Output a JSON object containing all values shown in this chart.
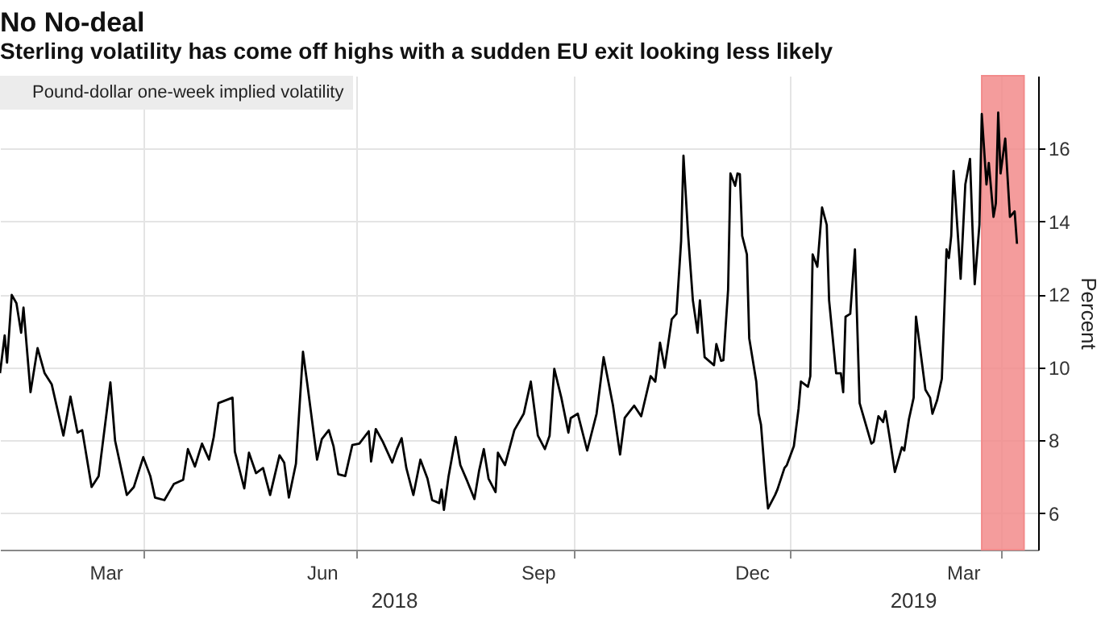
{
  "chart_data": {
    "type": "line",
    "title": "No No-deal",
    "subtitle": "Sterling volatility has come off highs with a sudden EU exit looking less likely",
    "ylabel": "Percent",
    "xlim": [
      "2018-01-30",
      "2019-04-17"
    ],
    "xticks": [
      {
        "value": "2018-04-01",
        "label": null
      },
      {
        "value": "2018-07-01",
        "label": null
      },
      {
        "value": "2018-10-01",
        "label": null
      },
      {
        "value": "2019-01-01",
        "label": null
      },
      {
        "value": "2019-04-01",
        "label": null
      },
      {
        "value": "2018-03-16",
        "label": "Mar"
      },
      {
        "value": "2018-06-16",
        "label": "Jun"
      },
      {
        "value": "2018-09-16",
        "label": "Sep"
      },
      {
        "value": "2018-12-16",
        "label": "Dec"
      },
      {
        "value": "2019-03-16",
        "label": "Mar"
      }
    ],
    "ylim": [
      5,
      18
    ],
    "yticks": [
      6,
      8,
      10,
      12,
      14,
      16
    ],
    "grid": true,
    "legend": "top left",
    "annotations": [
      "2018",
      "2019"
    ],
    "bands": [
      {
        "axis": "x",
        "from": "2019-03-24",
        "to": "2019-04-11",
        "color": "#f28b8b"
      }
    ],
    "series": [
      {
        "name": "Pound-dollar one-week implied volatility",
        "color": "#000000",
        "x": [
          "2018-01-30",
          "2018-02-01",
          "2018-02-02",
          "2018-02-04",
          "2018-02-06",
          "2018-02-08",
          "2018-02-09",
          "2018-02-12",
          "2018-02-15",
          "2018-02-18",
          "2018-02-21",
          "2018-02-26",
          "2018-03-01",
          "2018-03-04",
          "2018-03-06",
          "2018-03-10",
          "2018-03-13",
          "2018-03-18",
          "2018-03-20",
          "2018-03-25",
          "2018-03-28",
          "2018-04-01",
          "2018-04-04",
          "2018-04-06",
          "2018-04-10",
          "2018-04-14",
          "2018-04-18",
          "2018-04-20",
          "2018-04-23",
          "2018-04-26",
          "2018-04-29",
          "2018-05-01",
          "2018-05-03",
          "2018-05-09",
          "2018-05-10",
          "2018-05-14",
          "2018-05-16",
          "2018-05-19",
          "2018-05-22",
          "2018-05-25",
          "2018-05-29",
          "2018-05-31",
          "2018-06-02",
          "2018-06-05",
          "2018-06-08",
          "2018-06-10",
          "2018-06-14",
          "2018-06-16",
          "2018-06-19",
          "2018-06-21",
          "2018-06-23",
          "2018-06-26",
          "2018-06-29",
          "2018-07-02",
          "2018-07-06",
          "2018-07-07",
          "2018-07-09",
          "2018-07-12",
          "2018-07-16",
          "2018-07-18",
          "2018-07-20",
          "2018-07-22",
          "2018-07-25",
          "2018-07-28",
          "2018-07-31",
          "2018-08-02",
          "2018-08-05",
          "2018-08-06",
          "2018-08-07",
          "2018-08-09",
          "2018-08-12",
          "2018-08-14",
          "2018-08-17",
          "2018-08-20",
          "2018-08-22",
          "2018-08-24",
          "2018-08-26",
          "2018-08-29",
          "2018-08-30",
          "2018-09-02",
          "2018-09-06",
          "2018-09-10",
          "2018-09-13",
          "2018-09-16",
          "2018-09-19",
          "2018-09-21",
          "2018-09-23",
          "2018-09-26",
          "2018-09-29",
          "2018-09-30",
          "2018-10-03",
          "2018-10-07",
          "2018-10-11",
          "2018-10-14",
          "2018-10-18",
          "2018-10-21",
          "2018-10-23",
          "2018-10-27",
          "2018-10-30",
          "2018-11-03",
          "2018-11-05",
          "2018-11-07",
          "2018-11-09",
          "2018-11-12",
          "2018-11-14",
          "2018-11-16",
          "2018-11-17",
          "2018-11-19",
          "2018-11-21",
          "2018-11-23",
          "2018-11-24",
          "2018-11-26",
          "2018-11-30",
          "2018-12-01",
          "2018-12-03",
          "2018-12-04",
          "2018-12-06",
          "2018-12-07",
          "2018-12-09",
          "2018-12-10",
          "2018-12-11",
          "2018-12-12",
          "2018-12-14",
          "2018-12-15",
          "2018-12-18",
          "2018-12-19",
          "2018-12-20",
          "2018-12-22",
          "2018-12-23",
          "2018-12-26",
          "2018-12-27",
          "2018-12-30",
          "2018-12-31",
          "2019-01-03",
          "2019-01-05",
          "2019-01-06",
          "2019-01-09",
          "2019-01-10",
          "2019-01-11",
          "2019-01-13",
          "2019-01-15",
          "2019-01-17",
          "2019-01-18",
          "2019-01-21",
          "2019-01-23",
          "2019-01-24",
          "2019-01-25",
          "2019-01-27",
          "2019-01-29",
          "2019-01-31",
          "2019-02-05",
          "2019-02-06",
          "2019-02-08",
          "2019-02-10",
          "2019-02-11",
          "2019-02-13",
          "2019-02-15",
          "2019-02-18",
          "2019-02-19",
          "2019-02-21",
          "2019-02-23",
          "2019-02-24",
          "2019-02-28",
          "2019-03-02",
          "2019-03-03",
          "2019-03-05",
          "2019-03-07",
          "2019-03-09",
          "2019-03-10",
          "2019-03-11",
          "2019-03-12",
          "2019-03-14",
          "2019-03-15",
          "2019-03-17",
          "2019-03-19",
          "2019-03-20",
          "2019-03-21",
          "2019-03-23",
          "2019-03-24",
          "2019-03-26",
          "2019-03-27",
          "2019-03-29",
          "2019-03-30",
          "2019-03-31",
          "2019-04-01",
          "2019-04-03",
          "2019-04-05",
          "2019-04-07",
          "2019-04-08"
        ],
        "values": [
          9.84,
          10.88,
          10.13,
          11.99,
          11.76,
          10.95,
          11.64,
          9.32,
          10.53,
          9.84,
          9.54,
          8.13,
          9.2,
          8.21,
          8.28,
          6.72,
          7.02,
          9.59,
          7.99,
          6.5,
          6.72,
          7.54,
          7.02,
          6.43,
          6.36,
          6.8,
          6.92,
          7.76,
          7.28,
          7.91,
          7.47,
          8.09,
          9.02,
          9.17,
          7.69,
          6.68,
          7.66,
          7.1,
          7.24,
          6.5,
          7.59,
          7.39,
          6.43,
          7.36,
          10.43,
          9.47,
          7.47,
          8.03,
          8.28,
          7.84,
          7.07,
          7.02,
          7.87,
          7.91,
          8.25,
          7.42,
          8.31,
          7.96,
          7.39,
          7.76,
          8.06,
          7.24,
          6.5,
          7.47,
          6.95,
          6.36,
          6.28,
          6.65,
          6.09,
          7.02,
          8.09,
          7.32,
          6.87,
          6.39,
          7.17,
          7.76,
          6.95,
          6.58,
          7.66,
          7.32,
          8.28,
          8.73,
          9.61,
          8.13,
          7.76,
          8.13,
          9.96,
          9.17,
          8.21,
          8.61,
          8.73,
          7.72,
          8.73,
          10.28,
          8.95,
          7.61,
          8.62,
          8.95,
          8.66,
          9.76,
          9.61,
          10.68,
          9.99,
          11.32,
          11.47,
          13.47,
          15.81,
          13.61,
          11.84,
          10.95,
          11.84,
          10.28,
          10.06,
          10.64,
          10.18,
          10.2,
          12.13,
          15.32,
          14.98,
          15.32,
          15.3,
          13.61,
          13.1,
          10.8,
          9.61,
          8.73,
          8.43,
          6.8,
          6.13,
          6.5,
          6.65,
          7.24,
          7.32,
          7.84,
          8.87,
          9.61,
          9.47,
          9.76,
          13.1,
          12.76,
          14.39,
          13.91,
          11.84,
          9.84,
          9.84,
          9.32,
          11.39,
          11.47,
          13.24,
          9.02,
          7.91,
          7.96,
          8.66,
          8.5,
          8.8,
          7.99,
          7.13,
          7.81,
          7.72,
          8.58,
          9.17,
          11.39,
          9.39,
          9.17,
          8.73,
          9.1,
          9.69,
          13.24,
          13.0,
          13.61,
          15.39,
          13.47,
          12.43,
          15.02,
          15.72,
          13.91,
          12.28,
          13.91,
          16.95,
          15.02,
          15.61,
          14.13,
          14.5,
          16.99,
          15.32,
          16.28,
          14.13,
          14.28,
          13.39
        ]
      }
    ]
  }
}
